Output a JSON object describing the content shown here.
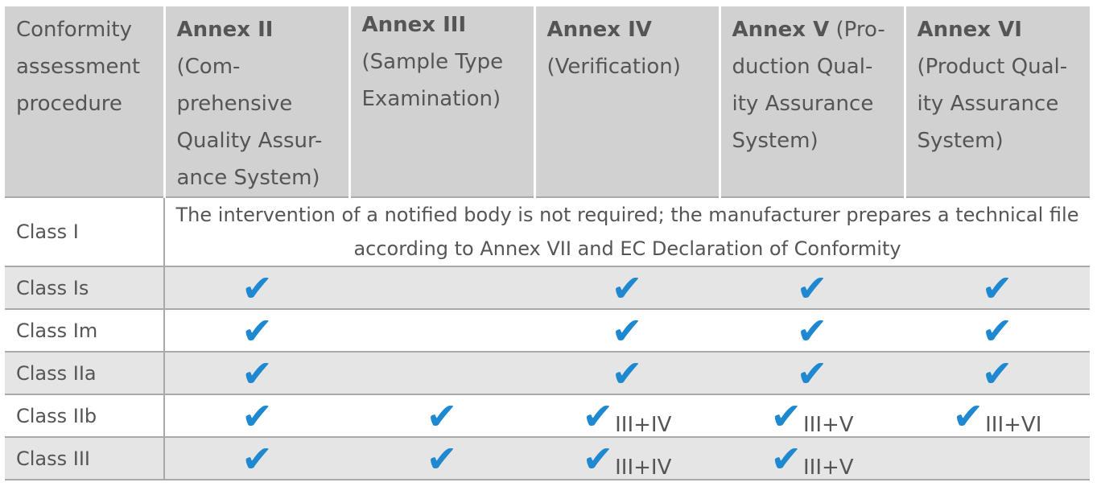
{
  "header": {
    "col0": "Conformity assessment procedure",
    "annexes": [
      {
        "bold": "Annex II",
        "rest": " (Com-prehensive Quality Assur-ance System)"
      },
      {
        "bold": "Annex III",
        "rest": " (Sample Type Examination)"
      },
      {
        "bold": "Annex IV",
        "rest": " (Verification)"
      },
      {
        "bold": "Annex V",
        "rest": " (Pro-duction Qual-ity Assurance System)"
      },
      {
        "bold": "Annex VI",
        "rest": " (Product Qual-ity Assurance System)"
      }
    ]
  },
  "class1": {
    "label": "Class I",
    "note": "The intervention of a notified body is not required; the manufacturer prepares a technical file according to Annex VII and EC Declaration of Conformity"
  },
  "check_glyph": "✔",
  "check_color": "#1e88d0",
  "rows": [
    {
      "label": "Class Is",
      "cells": [
        {
          "check": true,
          "combo": ""
        },
        {
          "check": false,
          "combo": ""
        },
        {
          "check": true,
          "combo": ""
        },
        {
          "check": true,
          "combo": ""
        },
        {
          "check": true,
          "combo": ""
        }
      ]
    },
    {
      "label": "Class Im",
      "cells": [
        {
          "check": true,
          "combo": ""
        },
        {
          "check": false,
          "combo": ""
        },
        {
          "check": true,
          "combo": ""
        },
        {
          "check": true,
          "combo": ""
        },
        {
          "check": true,
          "combo": ""
        }
      ]
    },
    {
      "label": "Class IIa",
      "cells": [
        {
          "check": true,
          "combo": ""
        },
        {
          "check": false,
          "combo": ""
        },
        {
          "check": true,
          "combo": ""
        },
        {
          "check": true,
          "combo": ""
        },
        {
          "check": true,
          "combo": ""
        }
      ]
    },
    {
      "label": "Class IIb",
      "cells": [
        {
          "check": true,
          "combo": ""
        },
        {
          "check": true,
          "combo": ""
        },
        {
          "check": true,
          "combo": "III+IV"
        },
        {
          "check": true,
          "combo": "III+V"
        },
        {
          "check": true,
          "combo": "III+VI"
        }
      ]
    },
    {
      "label": "Class III",
      "cells": [
        {
          "check": true,
          "combo": ""
        },
        {
          "check": true,
          "combo": ""
        },
        {
          "check": true,
          "combo": "III+IV"
        },
        {
          "check": true,
          "combo": "III+V"
        },
        {
          "check": false,
          "combo": ""
        }
      ]
    }
  ]
}
